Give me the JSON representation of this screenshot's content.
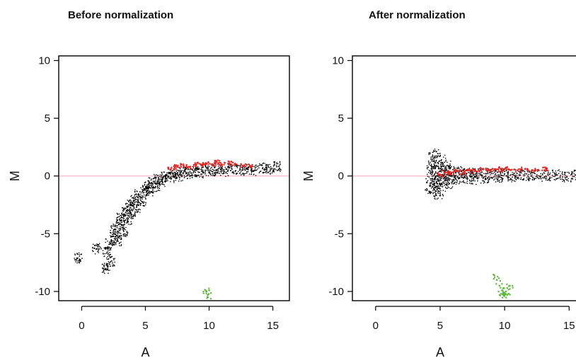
{
  "figure": {
    "colors": {
      "points": "#000000",
      "highlight": "#e8201e",
      "outlier": "#5cb83a",
      "reference_line": "#f4a6b4",
      "frame": "#000000"
    }
  },
  "chart_data": [
    {
      "type": "scatter",
      "title": "Before normalization",
      "xlabel": "A",
      "ylabel": "M",
      "xlim": [
        -1.8,
        16.3
      ],
      "ylim": [
        -10.8,
        10.4
      ],
      "xticks": [
        0,
        5,
        10,
        15
      ],
      "yticks": [
        10,
        5,
        0,
        -5,
        -10
      ],
      "reference_line": {
        "y": 0
      },
      "grid": false,
      "series": [
        {
          "role": "bulk",
          "color": "#000000",
          "points": [
            [
              -0.3,
              -7.1
            ],
            [
              1.2,
              -6.3
            ],
            [
              1.9,
              -8.0
            ],
            [
              2.0,
              -6.6
            ],
            [
              2.2,
              -5.9
            ],
            [
              2.3,
              -7.4
            ],
            [
              2.5,
              -5.2
            ],
            [
              2.6,
              -4.6
            ],
            [
              2.8,
              -5.6
            ],
            [
              3.0,
              -4.1
            ],
            [
              3.1,
              -3.6
            ],
            [
              3.3,
              -4.8
            ],
            [
              3.5,
              -3.0
            ],
            [
              3.6,
              -3.8
            ],
            [
              3.8,
              -2.5
            ],
            [
              3.9,
              -3.3
            ],
            [
              4.1,
              -2.1
            ],
            [
              4.3,
              -2.7
            ],
            [
              4.5,
              -1.6
            ],
            [
              4.7,
              -2.2
            ],
            [
              4.9,
              -1.2
            ],
            [
              5.1,
              -0.9
            ],
            [
              5.3,
              -1.3
            ],
            [
              5.5,
              -0.6
            ],
            [
              5.8,
              -0.9
            ],
            [
              6.0,
              -0.3
            ],
            [
              6.3,
              -0.5
            ],
            [
              6.6,
              0.0
            ],
            [
              6.9,
              -0.2
            ],
            [
              7.2,
              0.2
            ],
            [
              7.6,
              0.0
            ],
            [
              8.0,
              0.3
            ],
            [
              8.4,
              0.2
            ],
            [
              8.8,
              0.4
            ],
            [
              9.2,
              0.3
            ],
            [
              9.7,
              0.5
            ],
            [
              10.2,
              0.4
            ],
            [
              10.7,
              0.6
            ],
            [
              11.2,
              0.4
            ],
            [
              11.8,
              0.6
            ],
            [
              12.4,
              0.5
            ],
            [
              13.0,
              0.6
            ],
            [
              13.6,
              0.5
            ],
            [
              14.2,
              0.7
            ],
            [
              14.8,
              0.6
            ],
            [
              15.3,
              0.8
            ]
          ]
        },
        {
          "role": "highlighted",
          "color": "#e8201e",
          "points": [
            [
              7.0,
              0.6
            ],
            [
              7.5,
              0.8
            ],
            [
              8.0,
              0.9
            ],
            [
              8.5,
              0.8
            ],
            [
              9.0,
              1.0
            ],
            [
              9.4,
              0.9
            ],
            [
              9.8,
              1.1
            ],
            [
              10.2,
              1.0
            ],
            [
              10.6,
              1.2
            ],
            [
              11.0,
              1.0
            ],
            [
              11.5,
              1.1
            ],
            [
              12.0,
              1.0
            ],
            [
              12.6,
              0.9
            ],
            [
              13.2,
              0.9
            ]
          ]
        },
        {
          "role": "outlier",
          "color": "#5cb83a",
          "points": [
            [
              9.8,
              -10.0
            ],
            [
              9.9,
              -10.3
            ],
            [
              10.0,
              -9.9
            ],
            [
              9.9,
              -10.5
            ]
          ]
        }
      ]
    },
    {
      "type": "scatter",
      "title": "After normalization",
      "xlabel": "A",
      "ylabel": "M",
      "xlim": [
        -1.8,
        16.3
      ],
      "ylim": [
        -10.8,
        10.4
      ],
      "xticks": [
        0,
        5,
        10,
        15
      ],
      "yticks": [
        10,
        5,
        0,
        -5,
        -10
      ],
      "reference_line": {
        "y": 0
      },
      "grid": false,
      "series": [
        {
          "role": "bulk",
          "color": "#000000",
          "points": [
            [
              4.2,
              -0.9
            ],
            [
              4.3,
              0.6
            ],
            [
              4.4,
              1.4
            ],
            [
              4.5,
              -1.1
            ],
            [
              4.6,
              0.2
            ],
            [
              4.7,
              -0.5
            ],
            [
              4.8,
              1.7
            ],
            [
              4.9,
              -1.3
            ],
            [
              5.0,
              0.4
            ],
            [
              5.1,
              -0.7
            ],
            [
              5.2,
              1.1
            ],
            [
              5.3,
              -0.2
            ],
            [
              5.5,
              0.6
            ],
            [
              5.7,
              -0.4
            ],
            [
              5.9,
              0.3
            ],
            [
              6.2,
              -0.3
            ],
            [
              6.5,
              0.4
            ],
            [
              6.8,
              -0.2
            ],
            [
              7.2,
              0.3
            ],
            [
              7.6,
              -0.3
            ],
            [
              8.0,
              0.2
            ],
            [
              8.5,
              -0.2
            ],
            [
              9.0,
              0.2
            ],
            [
              9.5,
              -0.1
            ],
            [
              10.0,
              0.2
            ],
            [
              10.6,
              -0.1
            ],
            [
              11.2,
              0.1
            ],
            [
              11.8,
              0.0
            ],
            [
              12.5,
              0.1
            ],
            [
              13.2,
              0.0
            ],
            [
              14.0,
              0.1
            ],
            [
              14.8,
              -0.1
            ],
            [
              15.5,
              0.1
            ],
            [
              16.0,
              0.0
            ]
          ]
        },
        {
          "role": "highlighted",
          "color": "#e8201e",
          "points": [
            [
              5.0,
              0.1
            ],
            [
              5.4,
              0.3
            ],
            [
              5.8,
              0.2
            ],
            [
              6.3,
              0.4
            ],
            [
              6.8,
              0.3
            ],
            [
              7.3,
              0.5
            ],
            [
              7.8,
              0.4
            ],
            [
              8.3,
              0.6
            ],
            [
              8.8,
              0.5
            ],
            [
              9.3,
              0.6
            ],
            [
              9.8,
              0.5
            ],
            [
              10.3,
              0.6
            ],
            [
              11.0,
              0.5
            ],
            [
              11.6,
              0.6
            ],
            [
              12.4,
              0.5
            ],
            [
              13.2,
              0.6
            ]
          ]
        },
        {
          "role": "outlier",
          "color": "#5cb83a",
          "points": [
            [
              9.2,
              -8.6
            ],
            [
              9.4,
              -9.0
            ],
            [
              9.6,
              -9.5
            ],
            [
              9.8,
              -9.9
            ],
            [
              9.9,
              -10.2
            ],
            [
              10.0,
              -10.4
            ],
            [
              10.1,
              -10.0
            ],
            [
              10.2,
              -9.7
            ],
            [
              10.3,
              -10.2
            ],
            [
              10.4,
              -9.5
            ],
            [
              10.0,
              -10.1
            ],
            [
              10.2,
              -10.3
            ]
          ]
        }
      ]
    }
  ]
}
